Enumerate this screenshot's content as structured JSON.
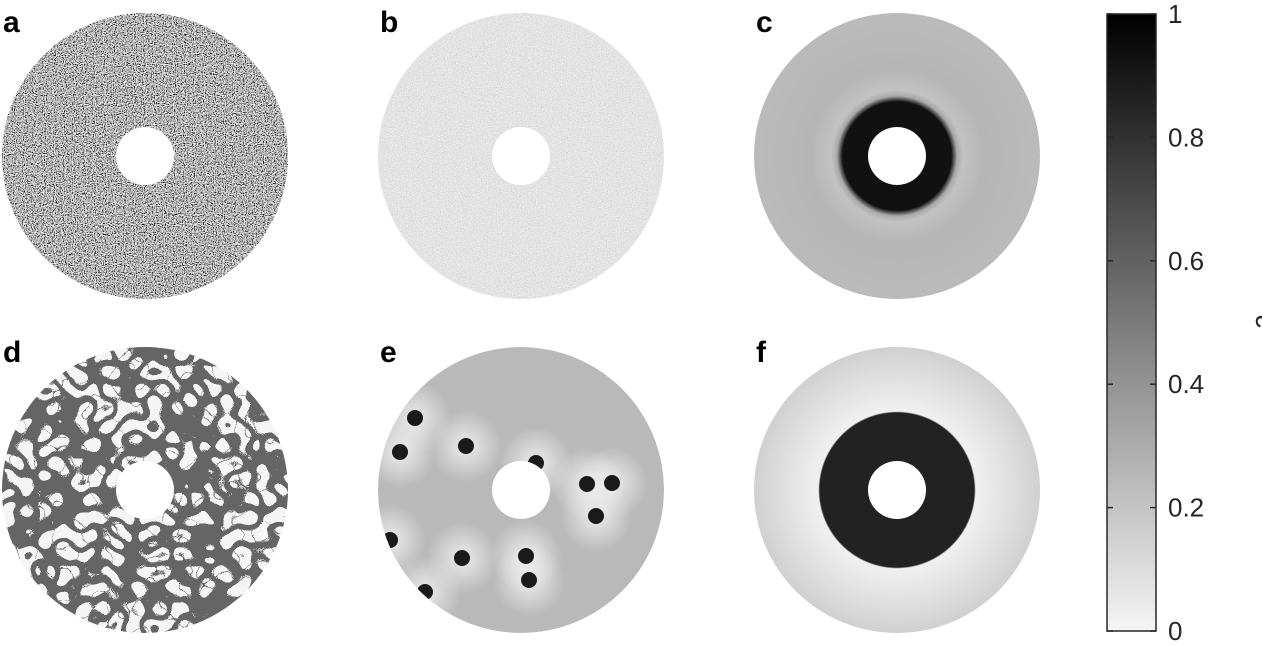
{
  "panels": [
    {
      "letter": "a",
      "pattern": "noise-high-contrast"
    },
    {
      "letter": "b",
      "pattern": "noise-low-contrast"
    },
    {
      "letter": "c",
      "pattern": "dark-ring-around-hole"
    },
    {
      "letter": "d",
      "pattern": "labyrinth"
    },
    {
      "letter": "e",
      "pattern": "droplets"
    },
    {
      "letter": "f",
      "pattern": "dark-ring-wide"
    }
  ],
  "colorbar": {
    "label": "c",
    "ticks": [
      "1",
      "0.8",
      "0.6",
      "0.4",
      "0.2",
      "0"
    ],
    "tick_values": [
      1,
      0.8,
      0.6,
      0.4,
      0.2,
      0
    ],
    "range": [
      0,
      1
    ],
    "color_low": "#f5f5f5",
    "color_high": "#000000"
  },
  "colors": {
    "panel_b_base": "#c4c4c4",
    "panel_c_background": "#b9b9b9",
    "panel_c_ring": "#111111",
    "panel_e_background": "#b9b9b9",
    "panel_e_droplet": "#1a1a1a",
    "panel_f_background": "#d2d2d2",
    "panel_f_ring": "#222222",
    "labyrinth_light": "#e8e8e8",
    "labyrinth_dark": "#222222"
  }
}
